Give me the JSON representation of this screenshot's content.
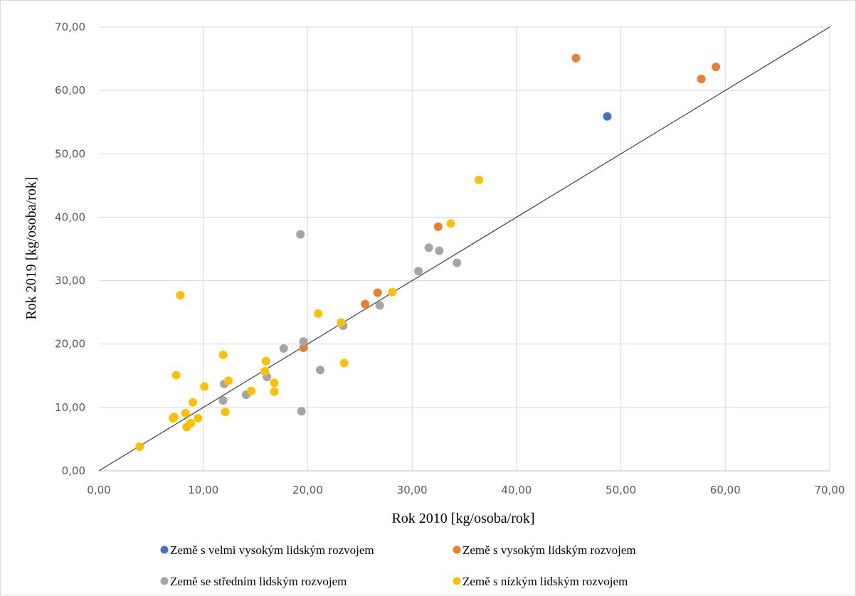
{
  "chart_data": {
    "type": "scatter",
    "xlabel": "Rok 2010 [kg/osoba/rok]",
    "ylabel": "Rok  2019 [kg/osoba/rok]",
    "xlim": [
      0,
      70
    ],
    "ylim": [
      0,
      70
    ],
    "x_ticks": [
      "0,00",
      "10,00",
      "20,00",
      "30,00",
      "40,00",
      "50,00",
      "60,00",
      "70,00"
    ],
    "y_ticks": [
      "0,00",
      "10,00",
      "20,00",
      "30,00",
      "40,00",
      "50,00",
      "60,00",
      "70,00"
    ],
    "grid": true,
    "legend_position": "bottom",
    "reference_line": {
      "from": [
        0,
        0
      ],
      "to": [
        70,
        70
      ],
      "color": "#404040"
    },
    "series": [
      {
        "name": "Země s velmi vysokým lidským rozvojem",
        "color": "#4472C4",
        "points": [
          [
            48.7,
            55.9
          ]
        ]
      },
      {
        "name": "Země s vysokým lidským rozvojem",
        "color": "#ED7D31",
        "points": [
          [
            45.7,
            65.1
          ],
          [
            57.7,
            61.8
          ],
          [
            59.1,
            63.7
          ],
          [
            32.5,
            38.5
          ],
          [
            26.7,
            28.1
          ],
          [
            25.5,
            26.3
          ],
          [
            19.6,
            19.4
          ]
        ]
      },
      {
        "name": "Země se středním lidským rozvojem",
        "color": "#A5A5A5",
        "points": [
          [
            19.3,
            37.3
          ],
          [
            31.6,
            35.2
          ],
          [
            32.6,
            34.7
          ],
          [
            34.3,
            32.8
          ],
          [
            30.6,
            31.5
          ],
          [
            26.9,
            26.1
          ],
          [
            23.4,
            22.9
          ],
          [
            19.6,
            20.4
          ],
          [
            17.7,
            19.3
          ],
          [
            21.2,
            15.9
          ],
          [
            12.0,
            13.7
          ],
          [
            16.1,
            14.8
          ],
          [
            14.1,
            12.0
          ],
          [
            11.9,
            11.1
          ],
          [
            19.4,
            9.4
          ]
        ]
      },
      {
        "name": "Země s nízkým lidským rozvojem",
        "color": "#FFC000",
        "points": [
          [
            36.4,
            45.9
          ],
          [
            33.7,
            39.0
          ],
          [
            7.8,
            27.7
          ],
          [
            28.1,
            28.2
          ],
          [
            21.0,
            24.8
          ],
          [
            23.2,
            23.4
          ],
          [
            23.5,
            17.0
          ],
          [
            11.9,
            18.3
          ],
          [
            16.0,
            17.3
          ],
          [
            15.9,
            15.7
          ],
          [
            7.4,
            15.1
          ],
          [
            12.4,
            14.2
          ],
          [
            16.8,
            13.9
          ],
          [
            10.1,
            13.3
          ],
          [
            14.6,
            12.6
          ],
          [
            16.8,
            12.5
          ],
          [
            9.0,
            10.8
          ],
          [
            12.1,
            9.3
          ],
          [
            8.3,
            9.1
          ],
          [
            7.1,
            8.3
          ],
          [
            9.5,
            8.3
          ],
          [
            7.2,
            8.5
          ],
          [
            8.8,
            7.5
          ],
          [
            8.4,
            6.9
          ],
          [
            3.9,
            3.8
          ]
        ]
      }
    ]
  }
}
